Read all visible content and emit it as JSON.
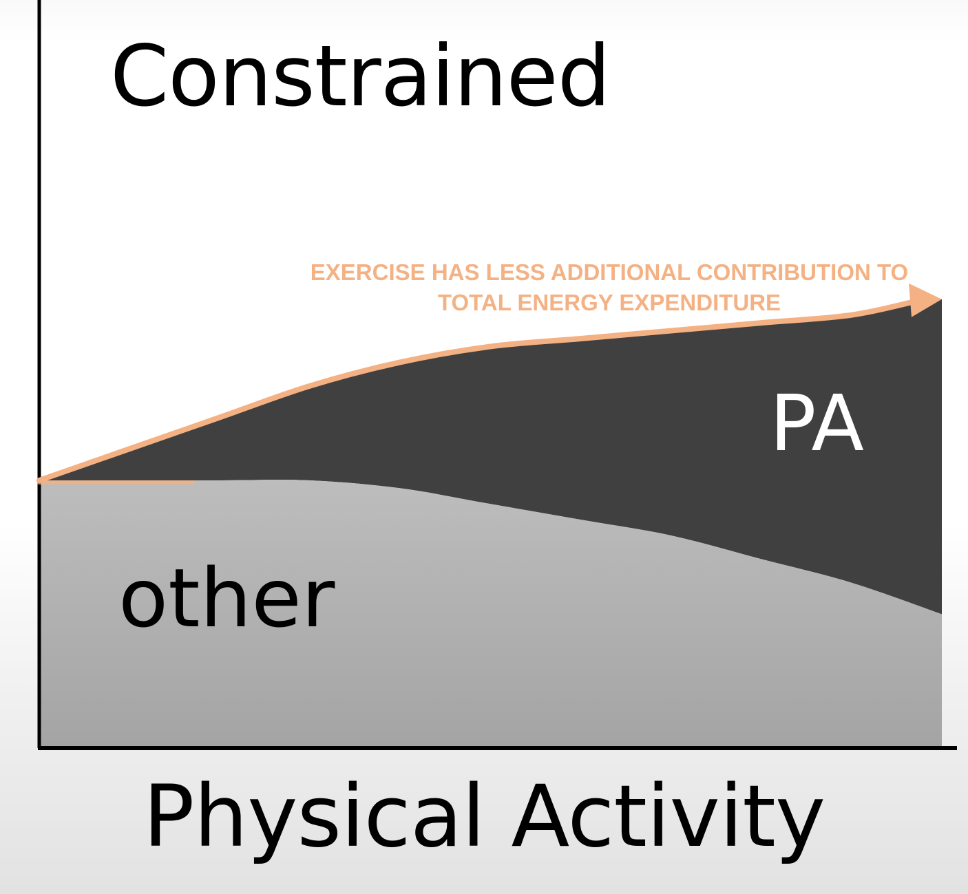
{
  "chart_data": {
    "type": "area",
    "title": "Constrained",
    "xlabel": "Physical Activity",
    "ylabel": "",
    "annotation_lines": [
      "EXERCISE HAS LESS ADDITIONAL CONTRIBUTION TO",
      "TOTAL ENERGY EXPENDITURE"
    ],
    "x": [
      0,
      0.1,
      0.2,
      0.3,
      0.4,
      0.5,
      0.6,
      0.7,
      0.8,
      0.9,
      1.0
    ],
    "series": [
      {
        "name": "other",
        "values": [
          0.34,
          0.34,
          0.34,
          0.34,
          0.33,
          0.31,
          0.29,
          0.27,
          0.24,
          0.21,
          0.17
        ]
      },
      {
        "name": "PA",
        "values": [
          0,
          0.04,
          0.08,
          0.12,
          0.16,
          0.2,
          0.23,
          0.26,
          0.3,
          0.34,
          0.4
        ]
      }
    ],
    "total_line": [
      0.34,
      0.38,
      0.42,
      0.46,
      0.49,
      0.51,
      0.52,
      0.53,
      0.54,
      0.55,
      0.57
    ],
    "xlim": [
      0,
      1
    ],
    "ylim": [
      0,
      0.95
    ],
    "grid": false,
    "legend": "none",
    "colors": {
      "other": "#b3b3b3",
      "PA": "#404040",
      "arrow": "#f4b183",
      "axis": "#000000"
    }
  }
}
